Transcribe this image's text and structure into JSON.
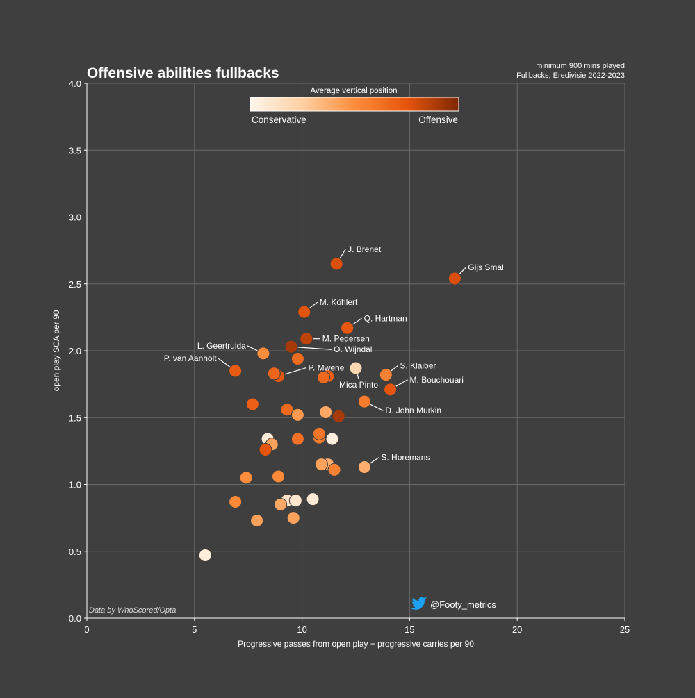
{
  "chart_data": {
    "type": "scatter",
    "title": "Offensive abilities fullbacks",
    "subtitle_lines": [
      "minimum 900 mins played",
      "Fullbacks, Eredivisie 2022-2023"
    ],
    "xlabel": "Progressive passes from open play + progressive carries per 90",
    "ylabel": "open play SCA per 90",
    "xlim": [
      0,
      25
    ],
    "ylim": [
      0.0,
      4.0
    ],
    "xticks": [
      "0",
      "5",
      "10",
      "15",
      "20",
      "25"
    ],
    "yticks": [
      "0.0",
      "0.5",
      "1.0",
      "1.5",
      "2.0",
      "2.5",
      "3.0",
      "3.5",
      "4.0"
    ],
    "grid": true,
    "colorbar": {
      "title": "Average vertical position",
      "low_label": "Conservative",
      "high_label": "Offensive",
      "colors": [
        "#fff5eb",
        "#fdd0a2",
        "#fd8d3c",
        "#e6550d",
        "#7f2704"
      ]
    },
    "credit": "Data by WhoScored/Opta",
    "handle": "@Footy_metrics",
    "handle_icon": "twitter-bird-icon",
    "points": [
      {
        "x": 11.6,
        "y": 2.65,
        "c": 0.78,
        "label": "J. Brenet"
      },
      {
        "x": 17.1,
        "y": 2.54,
        "c": 0.78,
        "label": "Gijs Smal"
      },
      {
        "x": 10.1,
        "y": 2.29,
        "c": 0.76,
        "label": "M. Köhlert"
      },
      {
        "x": 12.1,
        "y": 2.17,
        "c": 0.74,
        "label": "Q. Hartman"
      },
      {
        "x": 10.2,
        "y": 2.09,
        "c": 0.85,
        "label": "M. Pedersen"
      },
      {
        "x": 9.5,
        "y": 2.03,
        "c": 0.9,
        "label": "O. Wijndal"
      },
      {
        "x": 8.2,
        "y": 1.98,
        "c": 0.5,
        "label": "L. Geertruida"
      },
      {
        "x": 6.9,
        "y": 1.85,
        "c": 0.72,
        "label": "P. van Aanholt"
      },
      {
        "x": 8.9,
        "y": 1.81,
        "c": 0.75,
        "label": "P. Mwene"
      },
      {
        "x": 12.5,
        "y": 1.87,
        "c": 0.2,
        "label": "Mica Pinto"
      },
      {
        "x": 13.9,
        "y": 1.82,
        "c": 0.55,
        "label": "S. Klaiber"
      },
      {
        "x": 14.1,
        "y": 1.71,
        "c": 0.75,
        "label": "M. Bouchouari"
      },
      {
        "x": 12.9,
        "y": 1.62,
        "c": 0.58,
        "label": "D. John Murkin"
      },
      {
        "x": 12.9,
        "y": 1.13,
        "c": 0.38,
        "label": "S. Horemans"
      },
      {
        "x": 9.8,
        "y": 1.94,
        "c": 0.65,
        "label": ""
      },
      {
        "x": 8.7,
        "y": 1.83,
        "c": 0.68,
        "label": ""
      },
      {
        "x": 11.2,
        "y": 1.81,
        "c": 0.7,
        "label": ""
      },
      {
        "x": 11.0,
        "y": 1.8,
        "c": 0.66,
        "label": ""
      },
      {
        "x": 7.7,
        "y": 1.6,
        "c": 0.7,
        "label": ""
      },
      {
        "x": 9.3,
        "y": 1.56,
        "c": 0.66,
        "label": ""
      },
      {
        "x": 9.8,
        "y": 1.52,
        "c": 0.45,
        "label": ""
      },
      {
        "x": 11.1,
        "y": 1.54,
        "c": 0.4,
        "label": ""
      },
      {
        "x": 11.7,
        "y": 1.51,
        "c": 0.9,
        "label": ""
      },
      {
        "x": 8.4,
        "y": 1.34,
        "c": 0.05,
        "label": ""
      },
      {
        "x": 8.6,
        "y": 1.3,
        "c": 0.42,
        "label": ""
      },
      {
        "x": 9.8,
        "y": 1.34,
        "c": 0.62,
        "label": ""
      },
      {
        "x": 10.8,
        "y": 1.35,
        "c": 0.58,
        "label": ""
      },
      {
        "x": 10.8,
        "y": 1.38,
        "c": 0.6,
        "label": ""
      },
      {
        "x": 11.4,
        "y": 1.34,
        "c": 0.05,
        "label": ""
      },
      {
        "x": 8.3,
        "y": 1.26,
        "c": 0.75,
        "label": ""
      },
      {
        "x": 7.4,
        "y": 1.05,
        "c": 0.5,
        "label": ""
      },
      {
        "x": 8.9,
        "y": 1.06,
        "c": 0.52,
        "label": ""
      },
      {
        "x": 11.2,
        "y": 1.15,
        "c": 0.38,
        "label": ""
      },
      {
        "x": 10.9,
        "y": 1.15,
        "c": 0.42,
        "label": ""
      },
      {
        "x": 11.5,
        "y": 1.11,
        "c": 0.55,
        "label": ""
      },
      {
        "x": 9.3,
        "y": 0.88,
        "c": 0.12,
        "label": ""
      },
      {
        "x": 9.7,
        "y": 0.88,
        "c": 0.1,
        "label": ""
      },
      {
        "x": 10.5,
        "y": 0.89,
        "c": 0.08,
        "label": ""
      },
      {
        "x": 9.0,
        "y": 0.85,
        "c": 0.4,
        "label": ""
      },
      {
        "x": 6.9,
        "y": 0.87,
        "c": 0.52,
        "label": ""
      },
      {
        "x": 7.9,
        "y": 0.73,
        "c": 0.42,
        "label": ""
      },
      {
        "x": 9.6,
        "y": 0.75,
        "c": 0.42,
        "label": ""
      },
      {
        "x": 5.5,
        "y": 0.47,
        "c": 0.05,
        "label": ""
      }
    ]
  }
}
